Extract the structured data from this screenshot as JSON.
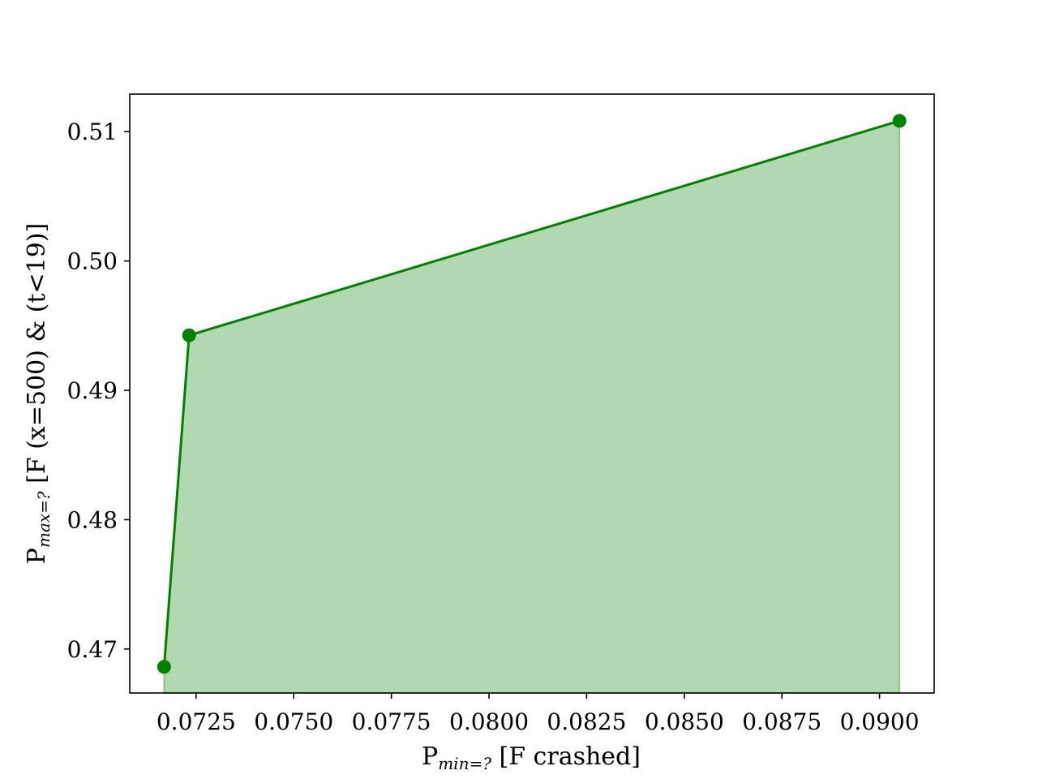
{
  "chart_data": {
    "type": "area",
    "xlabel": {
      "main": "P",
      "sub": "min=?",
      "rest": " [F crashed]"
    },
    "ylabel": {
      "main": "P",
      "sub": "max=?",
      "rest": " [F (x=500) & (t<19)]"
    },
    "x": [
      0.07168,
      0.07232,
      0.09051
    ],
    "y": [
      0.46862,
      0.49425,
      0.51083
    ],
    "xlim": [
      0.0708,
      0.0914
    ],
    "ylim": [
      0.4666,
      0.5129
    ],
    "xticks": [
      0.0725,
      0.075,
      0.0775,
      0.08,
      0.0825,
      0.085,
      0.0875,
      0.09
    ],
    "xtick_labels": [
      "0.0725",
      "0.0750",
      "0.0775",
      "0.0800",
      "0.0825",
      "0.0850",
      "0.0875",
      "0.0900"
    ],
    "yticks": [
      0.47,
      0.48,
      0.49,
      0.5,
      0.51
    ],
    "ytick_labels": [
      "0.47",
      "0.48",
      "0.49",
      "0.50",
      "0.51"
    ],
    "line_color": "#008000",
    "fill_color": "#b2d8b2",
    "fill_edge_color": "#7fc07f",
    "grid": false,
    "legend": "none"
  }
}
